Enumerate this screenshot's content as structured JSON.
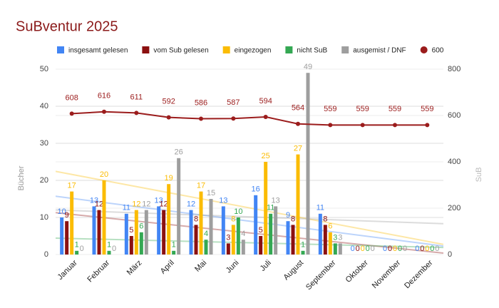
{
  "chart_data": {
    "type": "combo",
    "title": "SuBventur 2025",
    "categories": [
      "Januar",
      "Februar",
      "März",
      "April",
      "Mai",
      "Juni",
      "Juli",
      "August",
      "September",
      "Oktober",
      "November",
      "Dezember"
    ],
    "y_label": "Bücher",
    "y2_label": "SuB",
    "series": [
      {
        "name": "insgesamt gelesen",
        "type": "bar",
        "color": "#4285f4",
        "values": [
          10,
          13,
          11,
          13,
          12,
          13,
          16,
          9,
          11,
          0,
          0,
          0
        ]
      },
      {
        "name": "vom Sub gelesen",
        "type": "bar",
        "color": "#8b1010",
        "values": [
          9,
          12,
          5,
          12,
          8,
          3,
          5,
          8,
          8,
          0,
          0,
          0
        ]
      },
      {
        "name": "eingezogen",
        "type": "bar",
        "color": "#fbbc04",
        "values": [
          17,
          20,
          12,
          19,
          17,
          8,
          25,
          27,
          6,
          0,
          0,
          0
        ]
      },
      {
        "name": "nicht SuB",
        "type": "bar",
        "color": "#34a853",
        "values": [
          1,
          1,
          6,
          1,
          4,
          10,
          11,
          1,
          3,
          0,
          0,
          0
        ]
      },
      {
        "name": "ausgemist / DNF",
        "type": "bar",
        "color": "#9e9e9e",
        "values": [
          0,
          0,
          12,
          26,
          15,
          4,
          13,
          49,
          3,
          0,
          0,
          0
        ]
      },
      {
        "name": "600",
        "type": "line",
        "axis": "y2",
        "color": "#9b1c1c",
        "values": [
          608,
          616,
          611,
          592,
          586,
          587,
          594,
          564,
          559,
          559,
          559,
          559
        ]
      }
    ],
    "ylim": [
      0,
      50
    ],
    "yticks": [
      0,
      10,
      20,
      30,
      40,
      50
    ],
    "y2lim": [
      0,
      800
    ],
    "y2ticks": [
      0,
      200,
      400,
      600,
      800
    ],
    "grid": true,
    "trendlines": true,
    "legend": "top"
  }
}
